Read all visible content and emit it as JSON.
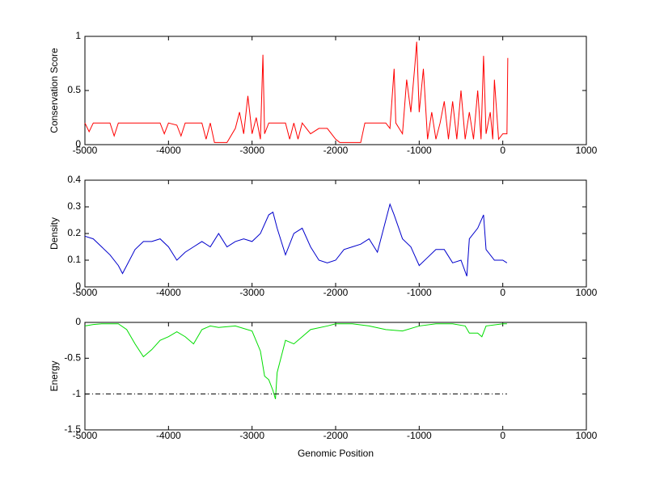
{
  "chart_data": [
    {
      "type": "line",
      "ylabel": "Conservation Score",
      "xlim": [
        -5000,
        1000
      ],
      "xticks": [
        -5000,
        -4000,
        -3000,
        -2000,
        -1000,
        0,
        1000
      ],
      "ylim": [
        0,
        1
      ],
      "yticks": [
        0,
        0.5,
        1
      ],
      "series": [
        {
          "color": "#ff0000",
          "x": [
            -5000,
            -4950,
            -4900,
            -4800,
            -4700,
            -4650,
            -4600,
            -4400,
            -4200,
            -4100,
            -4050,
            -4000,
            -3900,
            -3850,
            -3800,
            -3600,
            -3550,
            -3500,
            -3450,
            -3300,
            -3200,
            -3150,
            -3100,
            -3050,
            -3000,
            -2950,
            -2900,
            -2870,
            -2850,
            -2800,
            -2700,
            -2600,
            -2550,
            -2500,
            -2450,
            -2400,
            -2300,
            -2200,
            -2100,
            -2000,
            -1950,
            -1800,
            -1700,
            -1650,
            -1500,
            -1400,
            -1350,
            -1300,
            -1280,
            -1200,
            -1150,
            -1100,
            -1050,
            -1030,
            -1000,
            -950,
            -900,
            -850,
            -800,
            -750,
            -700,
            -650,
            -600,
            -550,
            -500,
            -450,
            -400,
            -350,
            -300,
            -260,
            -230,
            -200,
            -150,
            -120,
            -100,
            -50,
            0,
            50,
            60
          ],
          "values": [
            0.2,
            0.12,
            0.2,
            0.2,
            0.2,
            0.08,
            0.2,
            0.2,
            0.2,
            0.2,
            0.1,
            0.2,
            0.18,
            0.08,
            0.2,
            0.2,
            0.05,
            0.2,
            0.02,
            0.02,
            0.15,
            0.3,
            0.1,
            0.45,
            0.1,
            0.25,
            0.05,
            0.83,
            0.1,
            0.2,
            0.2,
            0.2,
            0.05,
            0.2,
            0.05,
            0.2,
            0.1,
            0.15,
            0.15,
            0.05,
            0.02,
            0.02,
            0.02,
            0.2,
            0.2,
            0.2,
            0.15,
            0.7,
            0.2,
            0.1,
            0.6,
            0.3,
            0.75,
            0.95,
            0.3,
            0.7,
            0.05,
            0.3,
            0.05,
            0.2,
            0.4,
            0.05,
            0.4,
            0.05,
            0.5,
            0.05,
            0.3,
            0.05,
            0.5,
            0.05,
            0.82,
            0.1,
            0.3,
            0.05,
            0.6,
            0.05,
            0.1,
            0.1,
            0.8
          ]
        }
      ]
    },
    {
      "type": "line",
      "ylabel": "Density",
      "xlim": [
        -5000,
        1000
      ],
      "xticks": [
        -5000,
        -4000,
        -3000,
        -2000,
        -1000,
        0,
        1000
      ],
      "ylim": [
        0,
        0.4
      ],
      "yticks": [
        0,
        0.1,
        0.2,
        0.3,
        0.4
      ],
      "series": [
        {
          "color": "#0000cc",
          "x": [
            -5000,
            -4900,
            -4800,
            -4700,
            -4600,
            -4550,
            -4500,
            -4400,
            -4300,
            -4200,
            -4100,
            -4000,
            -3900,
            -3800,
            -3700,
            -3600,
            -3500,
            -3400,
            -3300,
            -3200,
            -3100,
            -3000,
            -2900,
            -2800,
            -2750,
            -2700,
            -2600,
            -2500,
            -2400,
            -2300,
            -2200,
            -2100,
            -2000,
            -1900,
            -1800,
            -1700,
            -1600,
            -1500,
            -1400,
            -1350,
            -1300,
            -1200,
            -1100,
            -1000,
            -900,
            -800,
            -700,
            -600,
            -500,
            -430,
            -400,
            -300,
            -230,
            -200,
            -100,
            0,
            50
          ],
          "values": [
            0.19,
            0.18,
            0.15,
            0.12,
            0.08,
            0.05,
            0.08,
            0.14,
            0.17,
            0.17,
            0.18,
            0.15,
            0.1,
            0.13,
            0.15,
            0.17,
            0.15,
            0.2,
            0.15,
            0.17,
            0.18,
            0.17,
            0.2,
            0.27,
            0.28,
            0.22,
            0.12,
            0.2,
            0.22,
            0.15,
            0.1,
            0.09,
            0.1,
            0.14,
            0.15,
            0.16,
            0.18,
            0.13,
            0.25,
            0.31,
            0.27,
            0.18,
            0.15,
            0.08,
            0.11,
            0.14,
            0.14,
            0.09,
            0.1,
            0.04,
            0.18,
            0.22,
            0.27,
            0.14,
            0.1,
            0.1,
            0.09
          ]
        }
      ]
    },
    {
      "type": "line",
      "ylabel": "Energy",
      "xlabel": "Genomic Position",
      "xlim": [
        -5000,
        1000
      ],
      "xticks": [
        -5000,
        -4000,
        -3000,
        -2000,
        -1000,
        0,
        1000
      ],
      "ylim": [
        -1.5,
        0
      ],
      "yticks": [
        -1.5,
        -1,
        -0.5,
        0
      ],
      "series": [
        {
          "color": "#00dd00",
          "x": [
            -5000,
            -4900,
            -4800,
            -4600,
            -4500,
            -4400,
            -4300,
            -4200,
            -4100,
            -4000,
            -3900,
            -3800,
            -3700,
            -3600,
            -3500,
            -3400,
            -3200,
            -3000,
            -2900,
            -2850,
            -2800,
            -2750,
            -2720,
            -2700,
            -2600,
            -2500,
            -2400,
            -2300,
            -2100,
            -2000,
            -1800,
            -1600,
            -1400,
            -1200,
            -1000,
            -800,
            -600,
            -450,
            -400,
            -300,
            -250,
            -200,
            0,
            50
          ],
          "values": [
            -0.05,
            -0.03,
            -0.02,
            -0.02,
            -0.1,
            -0.3,
            -0.48,
            -0.38,
            -0.25,
            -0.2,
            -0.13,
            -0.2,
            -0.3,
            -0.1,
            -0.05,
            -0.07,
            -0.05,
            -0.12,
            -0.4,
            -0.75,
            -0.8,
            -0.95,
            -1.07,
            -0.7,
            -0.25,
            -0.3,
            -0.2,
            -0.1,
            -0.05,
            -0.02,
            -0.02,
            -0.05,
            -0.1,
            -0.12,
            -0.05,
            -0.02,
            -0.02,
            -0.05,
            -0.15,
            -0.15,
            -0.2,
            -0.05,
            -0.02,
            -0.02
          ]
        },
        {
          "color": "#000000",
          "dash": "dashdot",
          "x": [
            -5000,
            50
          ],
          "values": [
            -1,
            -1
          ]
        }
      ]
    }
  ]
}
